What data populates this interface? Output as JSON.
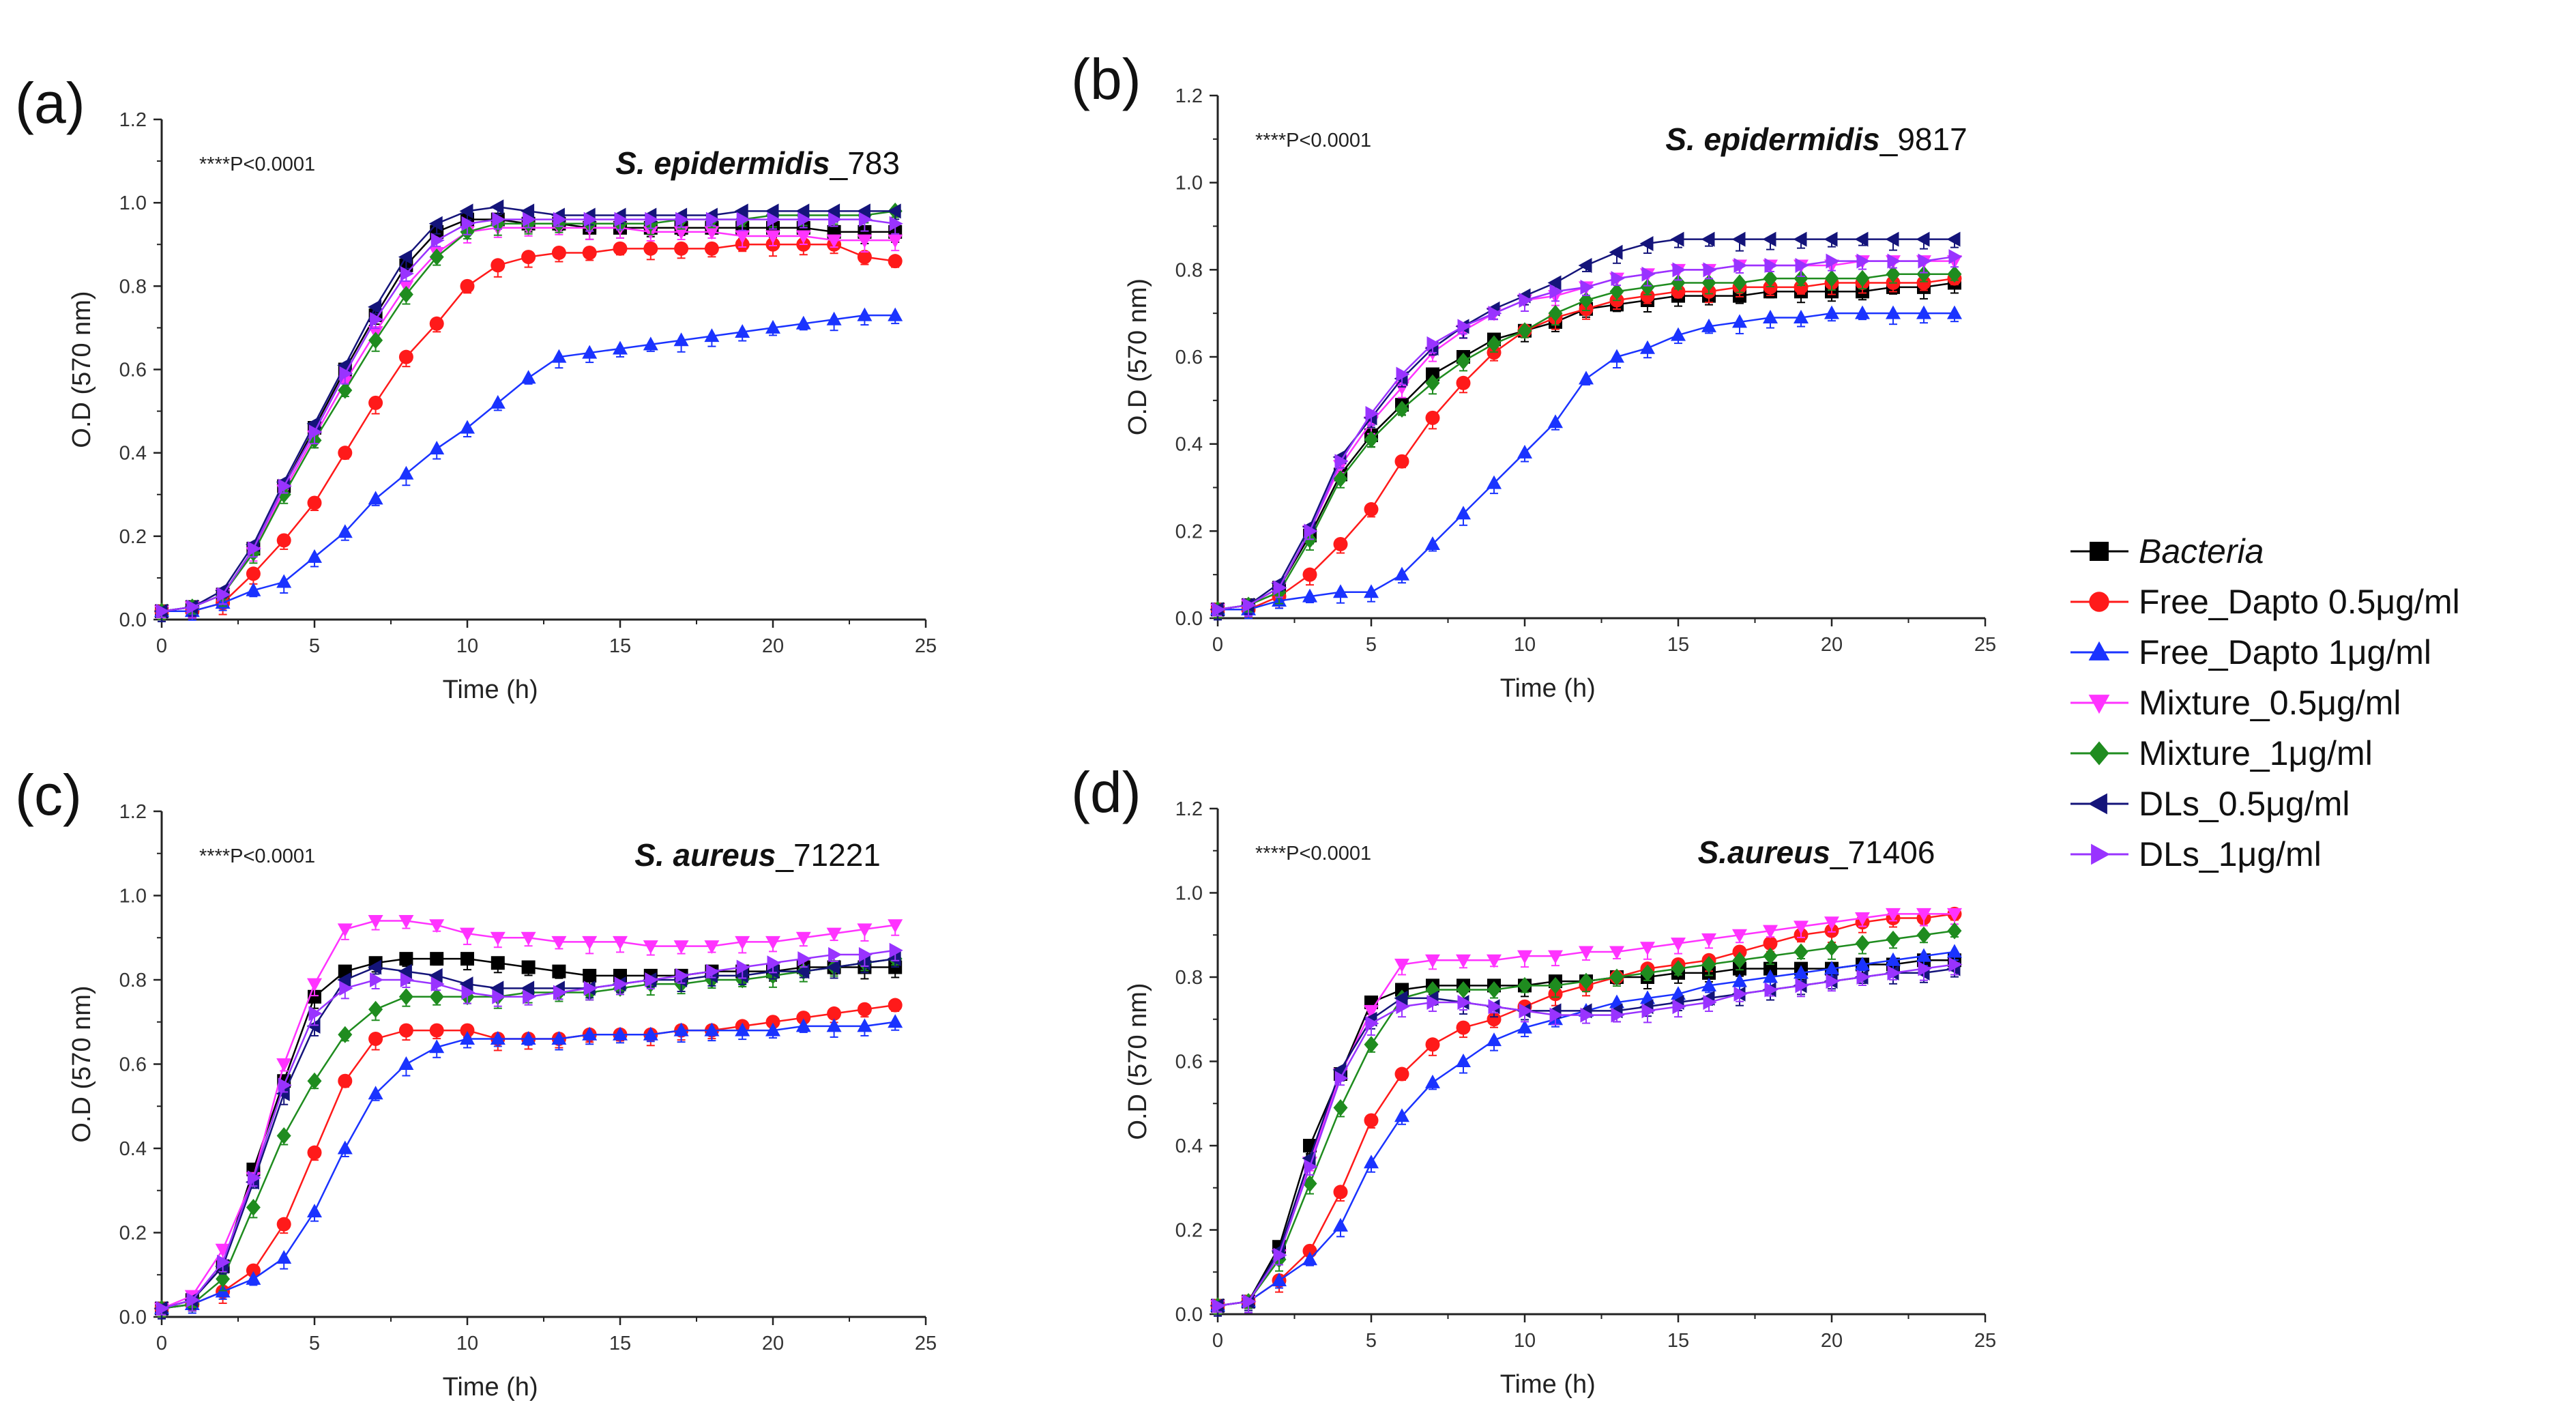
{
  "series_styles": [
    {
      "name": "Bacteria",
      "italic": true,
      "color": "#000000",
      "marker": "square"
    },
    {
      "name": "Free_Dapto 0.5μg/ml",
      "italic": false,
      "color": "#ff1a1a",
      "marker": "circle"
    },
    {
      "name": "Free_Dapto 1μg/ml",
      "italic": false,
      "color": "#1a33ff",
      "marker": "triangle-up"
    },
    {
      "name": "Mixture_0.5μg/ml",
      "italic": false,
      "color": "#ff33ff",
      "marker": "triangle-down"
    },
    {
      "name": "Mixture_1μg/ml",
      "italic": false,
      "color": "#1f8c1f",
      "marker": "diamond"
    },
    {
      "name": "DLs_0.5μg/ml",
      "italic": false,
      "color": "#14147a",
      "marker": "triangle-left"
    },
    {
      "name": "DLs_1μg/ml",
      "italic": false,
      "color": "#9933ff",
      "marker": "triangle-right"
    }
  ],
  "chart_data": [
    {
      "panel": "(a)",
      "type": "line",
      "title_italic": "S. epidermidis",
      "title_suffix": "_783",
      "annotation": "****P<0.0001",
      "xlabel": "Time (h)",
      "ylabel": "O.D (570 nm)",
      "xlim": [
        0,
        25
      ],
      "ylim": [
        0,
        1.2
      ],
      "xticks": [
        0,
        5,
        10,
        15,
        20,
        25
      ],
      "yticks": [
        "0.0",
        "0.2",
        "0.4",
        "0.6",
        "0.8",
        "1.0",
        "1.2"
      ],
      "x": [
        0,
        1,
        2,
        3,
        4,
        5,
        6,
        7,
        8,
        9,
        10,
        11,
        12,
        13,
        14,
        15,
        16,
        17,
        18,
        19,
        20,
        21,
        22,
        23,
        24
      ],
      "series": [
        {
          "name": "Bacteria",
          "values": [
            0.02,
            0.03,
            0.06,
            0.17,
            0.32,
            0.46,
            0.6,
            0.73,
            0.85,
            0.93,
            0.96,
            0.96,
            0.95,
            0.95,
            0.94,
            0.94,
            0.94,
            0.94,
            0.94,
            0.94,
            0.94,
            0.94,
            0.93,
            0.93,
            0.93
          ]
        },
        {
          "name": "Free_Dapto 0.5μg/ml",
          "values": [
            0.02,
            0.02,
            0.04,
            0.11,
            0.19,
            0.28,
            0.4,
            0.52,
            0.63,
            0.71,
            0.8,
            0.85,
            0.87,
            0.88,
            0.88,
            0.89,
            0.89,
            0.89,
            0.89,
            0.9,
            0.9,
            0.9,
            0.9,
            0.87,
            0.86
          ]
        },
        {
          "name": "Free_Dapto 1μg/ml",
          "values": [
            0.02,
            0.02,
            0.04,
            0.07,
            0.09,
            0.15,
            0.21,
            0.29,
            0.35,
            0.41,
            0.46,
            0.52,
            0.58,
            0.63,
            0.64,
            0.65,
            0.66,
            0.67,
            0.68,
            0.69,
            0.7,
            0.71,
            0.72,
            0.73,
            0.73
          ]
        },
        {
          "name": "Mixture_0.5μg/ml",
          "values": [
            0.02,
            0.03,
            0.06,
            0.16,
            0.31,
            0.44,
            0.57,
            0.69,
            0.8,
            0.88,
            0.93,
            0.94,
            0.94,
            0.94,
            0.94,
            0.94,
            0.93,
            0.93,
            0.93,
            0.92,
            0.92,
            0.92,
            0.91,
            0.91,
            0.91
          ]
        },
        {
          "name": "Mixture_1μg/ml",
          "values": [
            0.02,
            0.03,
            0.06,
            0.16,
            0.3,
            0.43,
            0.55,
            0.67,
            0.78,
            0.87,
            0.93,
            0.95,
            0.95,
            0.95,
            0.95,
            0.95,
            0.95,
            0.96,
            0.96,
            0.96,
            0.97,
            0.97,
            0.97,
            0.97,
            0.98
          ]
        },
        {
          "name": "DLs_0.5μg/ml",
          "values": [
            0.02,
            0.03,
            0.07,
            0.18,
            0.33,
            0.47,
            0.61,
            0.75,
            0.87,
            0.95,
            0.98,
            0.99,
            0.98,
            0.97,
            0.97,
            0.97,
            0.97,
            0.97,
            0.97,
            0.98,
            0.98,
            0.98,
            0.98,
            0.98,
            0.98
          ]
        },
        {
          "name": "DLs_1μg/ml",
          "values": [
            0.02,
            0.03,
            0.06,
            0.17,
            0.32,
            0.45,
            0.59,
            0.72,
            0.83,
            0.91,
            0.95,
            0.96,
            0.96,
            0.96,
            0.96,
            0.96,
            0.96,
            0.96,
            0.96,
            0.96,
            0.96,
            0.96,
            0.96,
            0.96,
            0.95
          ]
        }
      ]
    },
    {
      "panel": "(b)",
      "type": "line",
      "title_italic": "S. epidermidis",
      "title_suffix": "_9817",
      "annotation": "****P<0.0001",
      "xlabel": "Time (h)",
      "ylabel": "O.D (570 nm)",
      "xlim": [
        0,
        25
      ],
      "ylim": [
        0,
        1.2
      ],
      "xticks": [
        0,
        5,
        10,
        15,
        20,
        25
      ],
      "yticks": [
        "0.0",
        "0.2",
        "0.4",
        "0.6",
        "0.8",
        "1.0",
        "1.2"
      ],
      "x": [
        0,
        1,
        2,
        3,
        4,
        5,
        6,
        7,
        8,
        9,
        10,
        11,
        12,
        13,
        14,
        15,
        16,
        17,
        18,
        19,
        20,
        21,
        22,
        23,
        24
      ],
      "series": [
        {
          "name": "Bacteria",
          "values": [
            0.02,
            0.03,
            0.07,
            0.19,
            0.33,
            0.42,
            0.49,
            0.56,
            0.6,
            0.64,
            0.66,
            0.68,
            0.71,
            0.72,
            0.73,
            0.74,
            0.74,
            0.74,
            0.75,
            0.75,
            0.75,
            0.75,
            0.76,
            0.76,
            0.77
          ]
        },
        {
          "name": "Free_Dapto 0.5μg/ml",
          "values": [
            0.02,
            0.02,
            0.05,
            0.1,
            0.17,
            0.25,
            0.36,
            0.46,
            0.54,
            0.61,
            0.66,
            0.69,
            0.71,
            0.73,
            0.74,
            0.75,
            0.75,
            0.76,
            0.76,
            0.76,
            0.77,
            0.77,
            0.77,
            0.77,
            0.78
          ]
        },
        {
          "name": "Free_Dapto 1μg/ml",
          "values": [
            0.02,
            0.02,
            0.04,
            0.05,
            0.06,
            0.06,
            0.1,
            0.17,
            0.24,
            0.31,
            0.38,
            0.45,
            0.55,
            0.6,
            0.62,
            0.65,
            0.67,
            0.68,
            0.69,
            0.69,
            0.7,
            0.7,
            0.7,
            0.7,
            0.7
          ]
        },
        {
          "name": "Mixture_0.5μg/ml",
          "values": [
            0.02,
            0.03,
            0.07,
            0.2,
            0.35,
            0.45,
            0.53,
            0.61,
            0.66,
            0.7,
            0.73,
            0.74,
            0.76,
            0.78,
            0.79,
            0.8,
            0.8,
            0.81,
            0.81,
            0.81,
            0.81,
            0.82,
            0.82,
            0.82,
            0.82
          ]
        },
        {
          "name": "Mixture_1μg/ml",
          "values": [
            0.02,
            0.03,
            0.06,
            0.18,
            0.32,
            0.41,
            0.48,
            0.54,
            0.59,
            0.63,
            0.66,
            0.7,
            0.73,
            0.75,
            0.76,
            0.77,
            0.77,
            0.77,
            0.78,
            0.78,
            0.78,
            0.78,
            0.79,
            0.79,
            0.79
          ]
        },
        {
          "name": "DLs_0.5μg/ml",
          "values": [
            0.02,
            0.03,
            0.08,
            0.21,
            0.37,
            0.46,
            0.55,
            0.62,
            0.67,
            0.71,
            0.74,
            0.77,
            0.81,
            0.84,
            0.86,
            0.87,
            0.87,
            0.87,
            0.87,
            0.87,
            0.87,
            0.87,
            0.87,
            0.87,
            0.87
          ]
        },
        {
          "name": "DLs_1μg/ml",
          "values": [
            0.02,
            0.03,
            0.07,
            0.2,
            0.36,
            0.47,
            0.56,
            0.63,
            0.67,
            0.7,
            0.73,
            0.75,
            0.76,
            0.78,
            0.79,
            0.8,
            0.8,
            0.81,
            0.81,
            0.81,
            0.82,
            0.82,
            0.82,
            0.82,
            0.83
          ]
        }
      ]
    },
    {
      "panel": "(c)",
      "type": "line",
      "title_italic": "S. aureus",
      "title_suffix": "_71221",
      "annotation": "****P<0.0001",
      "xlabel": "Time (h)",
      "ylabel": "O.D (570 nm)",
      "xlim": [
        0,
        25
      ],
      "ylim": [
        0,
        1.2
      ],
      "xticks": [
        0,
        5,
        10,
        15,
        20,
        25
      ],
      "yticks": [
        "0.0",
        "0.2",
        "0.4",
        "0.6",
        "0.8",
        "1.0",
        "1.2"
      ],
      "x": [
        0,
        1,
        2,
        3,
        4,
        5,
        6,
        7,
        8,
        9,
        10,
        11,
        12,
        13,
        14,
        15,
        16,
        17,
        18,
        19,
        20,
        21,
        22,
        23,
        24
      ],
      "series": [
        {
          "name": "Bacteria",
          "values": [
            0.02,
            0.04,
            0.12,
            0.35,
            0.56,
            0.76,
            0.82,
            0.84,
            0.85,
            0.85,
            0.85,
            0.84,
            0.83,
            0.82,
            0.81,
            0.81,
            0.81,
            0.81,
            0.82,
            0.82,
            0.82,
            0.83,
            0.83,
            0.83,
            0.83
          ]
        },
        {
          "name": "Free_Dapto 0.5μg/ml",
          "values": [
            0.02,
            0.03,
            0.06,
            0.11,
            0.22,
            0.39,
            0.56,
            0.66,
            0.68,
            0.68,
            0.68,
            0.66,
            0.66,
            0.66,
            0.67,
            0.67,
            0.67,
            0.68,
            0.68,
            0.69,
            0.7,
            0.71,
            0.72,
            0.73,
            0.74
          ]
        },
        {
          "name": "Free_Dapto 1μg/ml",
          "values": [
            0.02,
            0.03,
            0.06,
            0.09,
            0.14,
            0.25,
            0.4,
            0.53,
            0.6,
            0.64,
            0.66,
            0.66,
            0.66,
            0.66,
            0.67,
            0.67,
            0.67,
            0.68,
            0.68,
            0.68,
            0.68,
            0.69,
            0.69,
            0.69,
            0.7
          ]
        },
        {
          "name": "Mixture_0.5μg/ml",
          "values": [
            0.02,
            0.05,
            0.16,
            0.33,
            0.6,
            0.79,
            0.92,
            0.94,
            0.94,
            0.93,
            0.91,
            0.9,
            0.9,
            0.89,
            0.89,
            0.89,
            0.88,
            0.88,
            0.88,
            0.89,
            0.89,
            0.9,
            0.91,
            0.92,
            0.93
          ]
        },
        {
          "name": "Mixture_1μg/ml",
          "values": [
            0.02,
            0.03,
            0.09,
            0.26,
            0.43,
            0.56,
            0.67,
            0.73,
            0.76,
            0.76,
            0.76,
            0.76,
            0.77,
            0.77,
            0.77,
            0.78,
            0.79,
            0.79,
            0.8,
            0.8,
            0.81,
            0.82,
            0.83,
            0.84,
            0.85
          ]
        },
        {
          "name": "DLs_0.5μg/ml",
          "values": [
            0.02,
            0.04,
            0.12,
            0.32,
            0.53,
            0.69,
            0.8,
            0.83,
            0.82,
            0.81,
            0.79,
            0.78,
            0.78,
            0.78,
            0.78,
            0.79,
            0.8,
            0.8,
            0.81,
            0.81,
            0.82,
            0.82,
            0.83,
            0.84,
            0.85
          ]
        },
        {
          "name": "DLs_1μg/ml",
          "values": [
            0.02,
            0.04,
            0.13,
            0.33,
            0.55,
            0.72,
            0.78,
            0.8,
            0.8,
            0.79,
            0.77,
            0.76,
            0.76,
            0.77,
            0.78,
            0.79,
            0.8,
            0.81,
            0.82,
            0.83,
            0.84,
            0.85,
            0.86,
            0.86,
            0.87
          ]
        }
      ]
    },
    {
      "panel": "(d)",
      "type": "line",
      "title_italic": "S.aureus",
      "title_suffix": "_71406",
      "annotation": "****P<0.0001",
      "xlabel": "Time (h)",
      "ylabel": "O.D (570 nm)",
      "xlim": [
        0,
        25
      ],
      "ylim": [
        0,
        1.2
      ],
      "xticks": [
        0,
        5,
        10,
        15,
        20,
        25
      ],
      "yticks": [
        "0.0",
        "0.2",
        "0.4",
        "0.6",
        "0.8",
        "1.0",
        "1.2"
      ],
      "x": [
        0,
        1,
        2,
        3,
        4,
        5,
        6,
        7,
        8,
        9,
        10,
        11,
        12,
        13,
        14,
        15,
        16,
        17,
        18,
        19,
        20,
        21,
        22,
        23,
        24
      ],
      "series": [
        {
          "name": "Bacteria",
          "values": [
            0.02,
            0.03,
            0.16,
            0.4,
            0.57,
            0.74,
            0.77,
            0.78,
            0.78,
            0.78,
            0.78,
            0.79,
            0.79,
            0.8,
            0.8,
            0.81,
            0.81,
            0.82,
            0.82,
            0.82,
            0.82,
            0.83,
            0.83,
            0.84,
            0.84
          ]
        },
        {
          "name": "Free_Dapto 0.5μg/ml",
          "values": [
            0.02,
            0.03,
            0.08,
            0.15,
            0.29,
            0.46,
            0.57,
            0.64,
            0.68,
            0.7,
            0.73,
            0.76,
            0.78,
            0.8,
            0.82,
            0.83,
            0.84,
            0.86,
            0.88,
            0.9,
            0.91,
            0.93,
            0.94,
            0.94,
            0.95
          ]
        },
        {
          "name": "Free_Dapto 1μg/ml",
          "values": [
            0.02,
            0.03,
            0.08,
            0.13,
            0.21,
            0.36,
            0.47,
            0.55,
            0.6,
            0.65,
            0.68,
            0.7,
            0.72,
            0.74,
            0.75,
            0.76,
            0.78,
            0.79,
            0.8,
            0.81,
            0.82,
            0.83,
            0.84,
            0.85,
            0.86
          ]
        },
        {
          "name": "Mixture_0.5μg/ml",
          "values": [
            0.02,
            0.03,
            0.14,
            0.36,
            0.57,
            0.72,
            0.83,
            0.84,
            0.84,
            0.84,
            0.85,
            0.85,
            0.86,
            0.86,
            0.87,
            0.88,
            0.89,
            0.9,
            0.91,
            0.92,
            0.93,
            0.94,
            0.95,
            0.95,
            0.95
          ]
        },
        {
          "name": "Mixture_1μg/ml",
          "values": [
            0.02,
            0.03,
            0.13,
            0.31,
            0.49,
            0.64,
            0.75,
            0.77,
            0.77,
            0.77,
            0.78,
            0.78,
            0.79,
            0.8,
            0.81,
            0.82,
            0.83,
            0.84,
            0.85,
            0.86,
            0.87,
            0.88,
            0.89,
            0.9,
            0.91
          ]
        },
        {
          "name": "DLs_0.5μg/ml",
          "values": [
            0.02,
            0.03,
            0.15,
            0.37,
            0.58,
            0.7,
            0.75,
            0.75,
            0.74,
            0.73,
            0.72,
            0.72,
            0.72,
            0.72,
            0.73,
            0.74,
            0.75,
            0.76,
            0.77,
            0.78,
            0.79,
            0.8,
            0.81,
            0.81,
            0.82
          ]
        },
        {
          "name": "DLs_1μg/ml",
          "values": [
            0.02,
            0.03,
            0.14,
            0.35,
            0.56,
            0.69,
            0.73,
            0.74,
            0.74,
            0.73,
            0.72,
            0.71,
            0.71,
            0.71,
            0.72,
            0.73,
            0.74,
            0.76,
            0.77,
            0.78,
            0.79,
            0.8,
            0.81,
            0.82,
            0.83
          ]
        }
      ]
    }
  ]
}
